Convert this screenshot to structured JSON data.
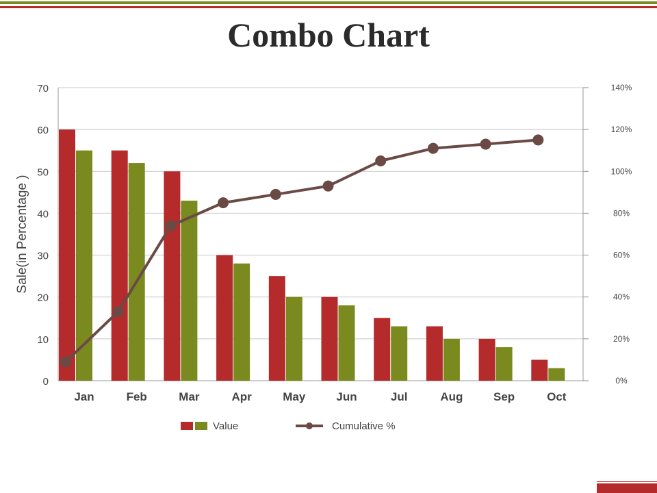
{
  "slide": {
    "title": "Combo Chart",
    "colors": {
      "accent_olive": "#7a8a1f",
      "accent_red": "#b52a2a"
    }
  },
  "chart_data": {
    "type": "bar",
    "categories": [
      "Jan",
      "Feb",
      "Mar",
      "Apr",
      "May",
      "Jun",
      "Jul",
      "Aug",
      "Sep",
      "Oct"
    ],
    "series": [
      {
        "name": "Value",
        "type": "bar",
        "color": "#b52a2a",
        "values": [
          60,
          55,
          50,
          30,
          25,
          20,
          15,
          13,
          10,
          5
        ]
      },
      {
        "type": "bar",
        "color": "#7a8a1f",
        "values": [
          55,
          52,
          43,
          28,
          20,
          18,
          13,
          10,
          8,
          3
        ]
      },
      {
        "name": "Cumulative %",
        "type": "line",
        "axis": "secondary",
        "color": "#6b4a45",
        "values": [
          9,
          33,
          74,
          85,
          89,
          93,
          105,
          111,
          113,
          115
        ]
      }
    ],
    "ylabel": "Sale(in Percentage )",
    "ylim": [
      0,
      70
    ],
    "yticks": [
      "0",
      "10",
      "20",
      "30",
      "40",
      "50",
      "60",
      "70"
    ],
    "y2lim": [
      0,
      140
    ],
    "y2ticks": [
      "0%",
      "20%",
      "40%",
      "60%",
      "80%",
      "100%",
      "120%",
      "140%"
    ],
    "grid": true,
    "legend": {
      "placement": "bottom",
      "items": [
        "Value",
        "Cumulative %"
      ]
    }
  }
}
